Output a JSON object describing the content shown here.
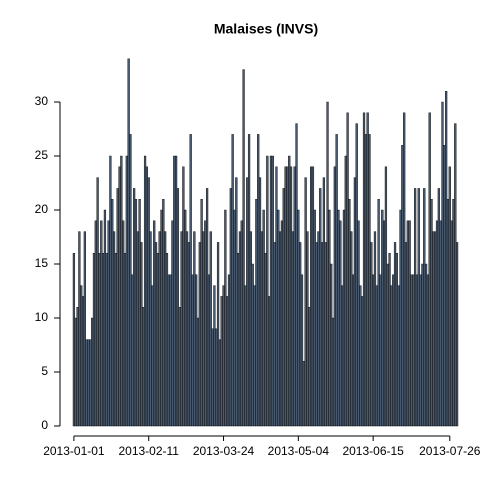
{
  "chart_data": {
    "type": "bar",
    "title": "Malaises (INVS)",
    "categories": [
      "2013-01-01",
      null,
      null,
      null,
      null,
      null,
      null,
      null,
      null,
      null,
      null,
      null,
      null,
      null,
      null,
      null,
      null,
      null,
      null,
      null,
      null,
      null,
      null,
      null,
      null,
      null,
      null,
      null,
      null,
      null,
      null,
      null,
      null,
      null,
      null,
      null,
      null,
      null,
      null,
      null,
      null,
      "2013-02-11",
      null,
      null,
      null,
      null,
      null,
      null,
      null,
      null,
      null,
      null,
      null,
      null,
      null,
      null,
      null,
      null,
      null,
      null,
      null,
      null,
      null,
      null,
      null,
      null,
      null,
      null,
      null,
      null,
      null,
      null,
      null,
      null,
      null,
      null,
      null,
      null,
      null,
      null,
      null,
      null,
      "2013-03-24",
      null,
      null,
      null,
      null,
      null,
      null,
      null,
      null,
      null,
      null,
      null,
      null,
      null,
      null,
      null,
      null,
      null,
      null,
      null,
      null,
      null,
      null,
      null,
      null,
      null,
      null,
      null,
      null,
      null,
      null,
      null,
      null,
      null,
      null,
      null,
      null,
      null,
      null,
      null,
      null,
      "2013-05-04",
      null,
      null,
      null,
      null,
      null,
      null,
      null,
      null,
      null,
      null,
      null,
      null,
      null,
      null,
      null,
      null,
      null,
      null,
      null,
      null,
      null,
      null,
      null,
      null,
      null,
      null,
      null,
      null,
      null,
      null,
      null,
      null,
      null,
      null,
      null,
      null,
      null,
      null,
      null,
      null,
      "2013-06-15",
      null,
      null,
      null,
      null,
      null,
      null,
      null,
      null,
      null,
      null,
      null,
      null,
      null,
      null,
      null,
      null,
      null,
      null,
      null,
      null,
      null,
      null,
      null,
      null,
      null,
      null,
      null,
      null,
      null,
      null,
      null,
      null,
      null,
      null,
      null,
      null,
      null,
      null,
      null,
      null,
      null,
      "2013-07-26",
      null,
      null,
      null,
      null
    ],
    "values": [
      16,
      10,
      11,
      18,
      13,
      12,
      18,
      8,
      8,
      8,
      10,
      16,
      19,
      23,
      16,
      19,
      16,
      20,
      16,
      19,
      25,
      21,
      18,
      16,
      22,
      24,
      25,
      19,
      16,
      25,
      34,
      27,
      14,
      22,
      21,
      18,
      21,
      17,
      11,
      25,
      24,
      23,
      18,
      13,
      19,
      17,
      16,
      18,
      20,
      21,
      18,
      16,
      14,
      14,
      19,
      25,
      25,
      22,
      11,
      18,
      24,
      20,
      18,
      17,
      27,
      14,
      18,
      14,
      10,
      17,
      21,
      18,
      19,
      22,
      14,
      18,
      9,
      13,
      9,
      17,
      8,
      12,
      13,
      20,
      12,
      14,
      22,
      27,
      20,
      23,
      16,
      18,
      19,
      33,
      13,
      23,
      27,
      18,
      15,
      13,
      21,
      27,
      23,
      18,
      20,
      16,
      25,
      12,
      25,
      25,
      17,
      24,
      20,
      18,
      19,
      22,
      24,
      24,
      25,
      24,
      18,
      24,
      28,
      20,
      17,
      14,
      6,
      23,
      18,
      11,
      24,
      24,
      20,
      17,
      18,
      22,
      17,
      23,
      17,
      30,
      20,
      15,
      10,
      24,
      27,
      20,
      19,
      13,
      20,
      25,
      29,
      21,
      18,
      14,
      23,
      28,
      19,
      13,
      12,
      29,
      27,
      29,
      27,
      17,
      14,
      18,
      13,
      21,
      14,
      20,
      19,
      24,
      15,
      16,
      13,
      14,
      17,
      16,
      13,
      20,
      26,
      29,
      17,
      19,
      19,
      14,
      14,
      22,
      14,
      22,
      14,
      15,
      22,
      15,
      14,
      29,
      21,
      18,
      18,
      19,
      22,
      19,
      30,
      26,
      31,
      21,
      24,
      19,
      21,
      28,
      17
    ],
    "color": "#4a5a6e",
    "ylim": [
      0,
      34
    ],
    "yticks": [
      0,
      5,
      10,
      15,
      20,
      25,
      30
    ]
  }
}
